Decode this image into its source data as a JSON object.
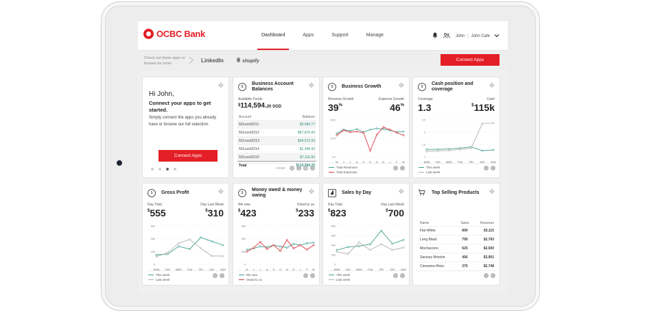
{
  "brand": {
    "name": "OCBC Bank",
    "color": "#e41e26"
  },
  "nav": [
    {
      "label": "Dashboard",
      "active": true
    },
    {
      "label": "Apps",
      "active": false
    },
    {
      "label": "Support",
      "active": false
    },
    {
      "label": "Manage",
      "active": false
    }
  ],
  "user": {
    "first": "John",
    "full": "John Cafe",
    "icons": [
      "bell-icon",
      "users-icon",
      "chevron-down-icon"
    ]
  },
  "apps_bar": {
    "hint": "Check out these apps or browse for more.",
    "logos": [
      "LinkedIn",
      "shopify"
    ],
    "connect_label": "Connect Apps"
  },
  "welcome": {
    "greeting": "Hi John,",
    "headline": "Connect your apps to get started.",
    "body": "Simply connect the apps you already have or browse our full selection.",
    "button": "Connect Apps",
    "pager_active": 3,
    "pager_total": 4
  },
  "balances": {
    "title": "Business Account Balances",
    "funds_label": "Available Funds",
    "funds_currency": "$",
    "funds_value": "114,594.",
    "funds_cents": "20 SGD",
    "columns": [
      "Account",
      "Balance"
    ],
    "rows": [
      {
        "account": "501xxx02211",
        "balance": "$3,689.77"
      },
      {
        "account": "501xxx02212",
        "balance": "$67,876.00"
      },
      {
        "account": "501xxx02213",
        "balance": "$34,572.00"
      },
      {
        "account": "501xxx02214",
        "balance": "$1,346.43"
      },
      {
        "account": "501xxx02215",
        "balance": "$7,110.00"
      }
    ],
    "total_label": "Total",
    "total_value": "$114,594.20",
    "footer_label": "OCBC"
  },
  "growth": {
    "title": "Business Growth",
    "left_label": "Revenue Growth",
    "left_value": "39",
    "left_unit": "%",
    "right_label": "Expense Growth",
    "right_value": "46",
    "right_unit": "%",
    "legend": [
      "Total Revenues",
      "Total Expenses"
    ]
  },
  "cash": {
    "title": "Cash position and coverage",
    "left_label": "Coverage",
    "left_value": "1.3",
    "right_label": "Cash",
    "right_currency": "$",
    "right_value": "115k",
    "legend": [
      "This week",
      "Last week"
    ]
  },
  "gross": {
    "title": "Gross Profit",
    "left_label": "Day Total",
    "left_currency": "$",
    "left_value": "555",
    "right_label": "Day Last Week",
    "right_currency": "$",
    "right_value": "310",
    "legend": [
      "This week",
      "Last week"
    ]
  },
  "owed": {
    "title": "Money owed & money owing",
    "left_label": "We owe",
    "left_currency": "$",
    "left_value": "423",
    "right_label": "Owed to us",
    "right_currency": "$",
    "right_value": "233",
    "legend": [
      "We owe",
      "Owed to us"
    ]
  },
  "sales": {
    "title": "Sales by Day",
    "left_label": "Day Total",
    "left_currency": "$",
    "left_value": "823",
    "right_label": "Day Last Week",
    "right_currency": "$",
    "right_value": "700",
    "legend": [
      "This week",
      "Last week"
    ]
  },
  "products": {
    "title": "Top Selling Products",
    "columns": [
      "Name",
      "Sales",
      "Revenue"
    ],
    "rows": [
      {
        "name": "Flat White",
        "sales": "890",
        "revenue": "$3,115"
      },
      {
        "name": "Long Black",
        "sales": "795",
        "revenue": "$2,783"
      },
      {
        "name": "Mochaccino",
        "sales": "625",
        "revenue": "$2,500"
      },
      {
        "name": "Savoury Brioche",
        "sales": "456",
        "revenue": "$3,951"
      },
      {
        "name": "Cinnamon Brioc",
        "sales": "375",
        "revenue": "$2,748"
      }
    ]
  },
  "chart_data": [
    {
      "type": "line",
      "title": "Business Growth",
      "categories": [
        "M",
        "J",
        "J",
        "A",
        "S",
        "O",
        "N",
        "D",
        "J",
        "F",
        "M"
      ],
      "ylim": [
        0,
        60
      ],
      "yticks": [
        "60.0",
        "37.5",
        "0.0"
      ],
      "series": [
        {
          "name": "Total Revenues",
          "color": "#3e9e8e",
          "values": [
            38,
            44,
            42,
            45,
            40,
            44,
            46,
            45,
            43,
            40,
            41
          ]
        },
        {
          "name": "Total Expenses",
          "color": "#d9363e",
          "values": [
            35,
            43,
            40,
            41,
            39,
            10,
            36,
            48,
            44,
            39,
            35
          ]
        }
      ]
    },
    {
      "type": "line",
      "title": "Cash position and coverage",
      "categories": [
        "MON",
        "TUE",
        "WED",
        "THU",
        "FRI",
        "SAT",
        "SUN"
      ],
      "ylim": [
        1,
        2.5
      ],
      "yticks": [
        "2.5",
        "2",
        "1.5",
        "1"
      ],
      "series": [
        {
          "name": "This week",
          "color": "#3e9e8e",
          "values": [
            1.3,
            1.3,
            1.32,
            1.35,
            1.4,
            1.25,
            1.28
          ]
        },
        {
          "name": "Last week",
          "color": "#b0b0b0",
          "values": [
            1.22,
            1.24,
            1.26,
            1.3,
            1.35,
            2.35,
            2.37
          ]
        }
      ]
    },
    {
      "type": "line",
      "title": "Gross Profit",
      "categories": [
        "MON",
        "TUE",
        "WED",
        "THU",
        "FRI",
        "SAT",
        "SUN"
      ],
      "ylim": [
        0,
        600
      ],
      "yticks": [
        "600",
        "400",
        "200",
        "0"
      ],
      "series": [
        {
          "name": "This week",
          "color": "#3e9e8e",
          "values": [
            150,
            160,
            280,
            240,
            420,
            360,
            300
          ]
        },
        {
          "name": "Last week",
          "color": "#b0b0b0",
          "values": [
            120,
            180,
            330,
            390,
            250,
            130,
            130
          ]
        }
      ]
    },
    {
      "type": "line",
      "title": "Money owed & money owing",
      "categories": [
        "M",
        "J",
        "J",
        "A",
        "S",
        "O",
        "N",
        "D",
        "J",
        "F",
        "M"
      ],
      "ylim": [
        0,
        600
      ],
      "yticks": [
        "600",
        "400",
        "200",
        "0"
      ],
      "series": [
        {
          "name": "We owe",
          "color": "#3e9e8e",
          "values": [
            230,
            250,
            280,
            270,
            300,
            280,
            260,
            320,
            300,
            330,
            340
          ]
        },
        {
          "name": "Owed to us",
          "color": "#d9363e",
          "values": [
            200,
            260,
            350,
            240,
            300,
            210,
            380,
            250,
            300,
            230,
            300
          ]
        }
      ]
    },
    {
      "type": "line",
      "title": "Sales by Day",
      "categories": [
        "MON",
        "TUE",
        "WED",
        "THU",
        "FRI",
        "SAT",
        "SUN"
      ],
      "ylim": [
        0,
        800
      ],
      "yticks": [
        "800",
        "600",
        "400",
        "200",
        "0"
      ],
      "series": [
        {
          "name": "This week",
          "color": "#3e9e8e",
          "values": [
            300,
            360,
            380,
            420,
            700,
            430,
            510
          ]
        },
        {
          "name": "Last week",
          "color": "#b0b0b0",
          "values": [
            260,
            220,
            460,
            300,
            420,
            300,
            350
          ]
        }
      ]
    }
  ]
}
